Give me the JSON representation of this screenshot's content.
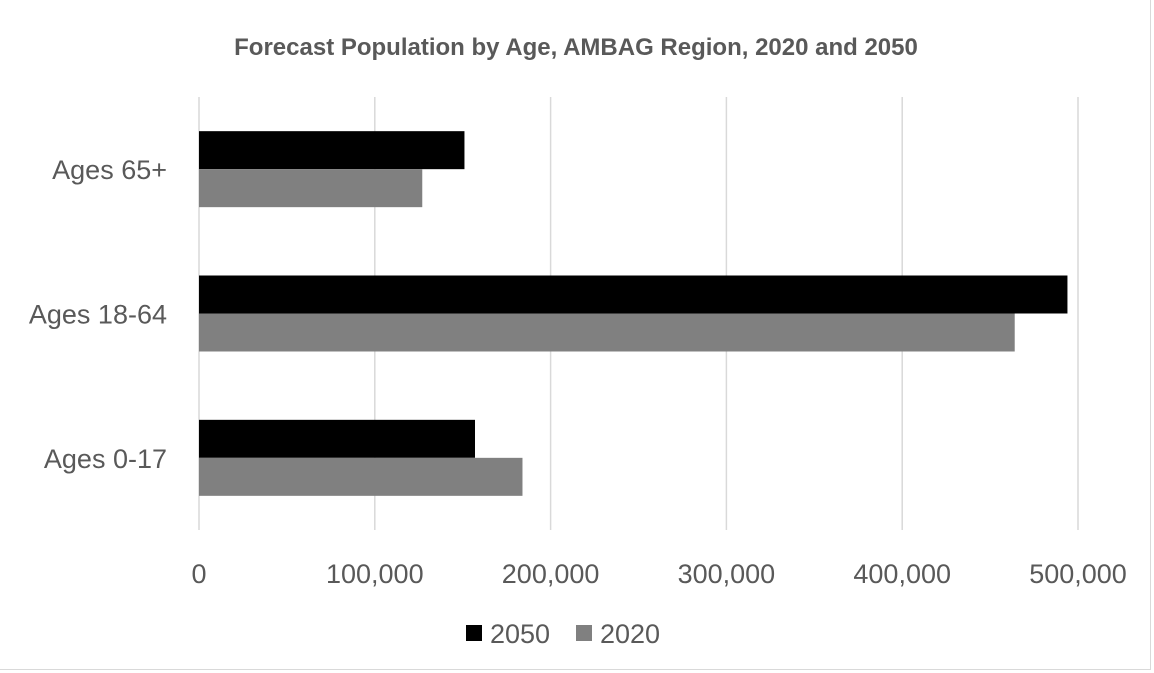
{
  "chart_data": {
    "type": "bar",
    "orientation": "horizontal",
    "title": "Forecast Population by Age, AMBAG Region, 2020 and 2050",
    "xlabel": "",
    "ylabel": "",
    "categories": [
      "Ages 65+",
      "Ages 18-64",
      "Ages 0-17"
    ],
    "series": [
      {
        "name": "2050",
        "color": "#000000",
        "values": [
          151000,
          494000,
          157000
        ]
      },
      {
        "name": "2020",
        "color": "#808080",
        "values": [
          127000,
          464000,
          184000
        ]
      }
    ],
    "xlim": [
      0,
      500000
    ],
    "xticks": [
      0,
      100000,
      200000,
      300000,
      400000,
      500000
    ],
    "xtick_labels": [
      "0",
      "100,000",
      "200,000",
      "300,000",
      "400,000",
      "500,000"
    ],
    "grid": "vertical",
    "legend": "bottom"
  }
}
